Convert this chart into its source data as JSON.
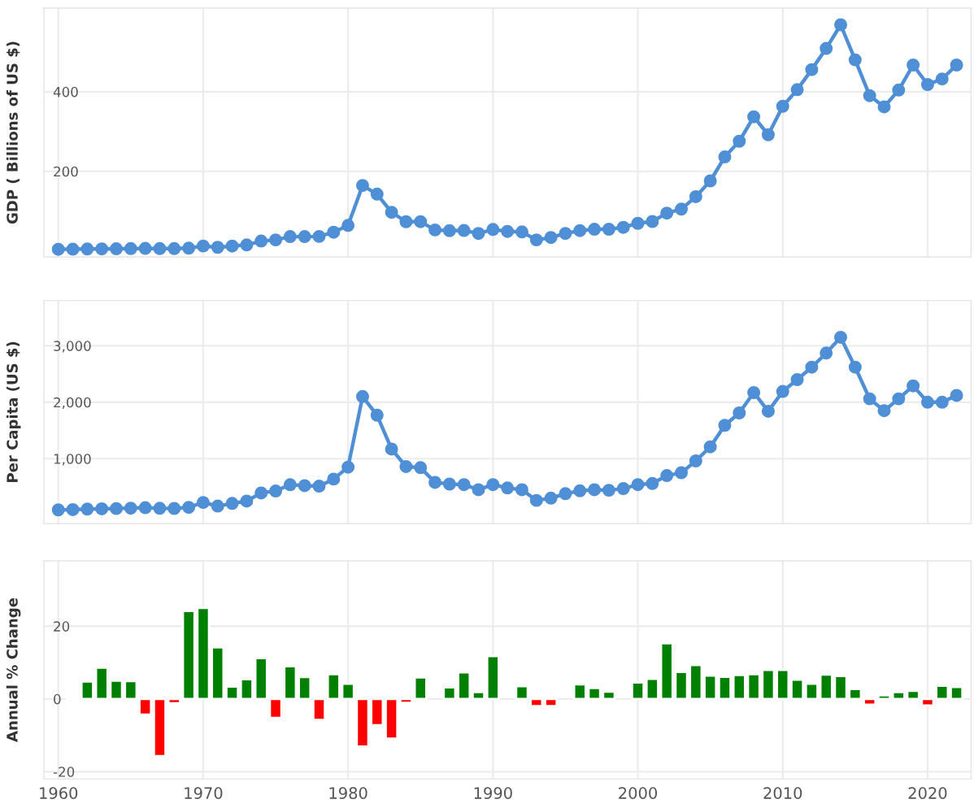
{
  "chart_data": [
    {
      "type": "line",
      "ylabel": "GDP ( Billions of US $)",
      "x": [
        1960,
        1961,
        1962,
        1963,
        1964,
        1965,
        1966,
        1967,
        1968,
        1969,
        1970,
        1971,
        1972,
        1973,
        1974,
        1975,
        1976,
        1977,
        1978,
        1979,
        1980,
        1981,
        1982,
        1983,
        1984,
        1985,
        1986,
        1987,
        1988,
        1989,
        1990,
        1991,
        1992,
        1993,
        1994,
        1995,
        1996,
        1997,
        1998,
        1999,
        2000,
        2001,
        2002,
        2003,
        2004,
        2005,
        2006,
        2007,
        2008,
        2009,
        2010,
        2011,
        2012,
        2013,
        2014,
        2015,
        2016,
        2017,
        2018,
        2019,
        2020,
        2021,
        2022
      ],
      "series": [
        {
          "color": "#4f8fd6",
          "values": [
            4.2,
            4.5,
            4.9,
            5.2,
            5.5,
            5.9,
            6.4,
            6.0,
            6.0,
            7.0,
            12.5,
            9.2,
            12.3,
            15.2,
            24.8,
            27.8,
            36.0,
            36.0,
            36.5,
            47.0,
            64.2,
            164.5,
            142.8,
            97.1,
            73.5,
            73.7,
            52.8,
            50.9,
            51.4,
            44.0,
            54.0,
            49.1,
            47.8,
            27.8,
            33.8,
            44.1,
            51.1,
            54.5,
            54.6,
            59.4,
            69.4,
            74.0,
            95.1,
            104.9,
            136.4,
            176.1,
            236.1,
            275.6,
            337.0,
            291.9,
            363.4,
            405.0,
            455.5,
            508.7,
            568.0,
            480.0,
            390.0,
            362.0,
            404.0,
            467.0,
            418.0,
            432.0,
            467.0
          ]
        }
      ],
      "xlim": [
        1959,
        2023
      ],
      "xticks": [
        1960,
        1970,
        1980,
        1990,
        2000,
        2010,
        2020
      ],
      "ylim": [
        -15,
        610
      ],
      "yticks": [
        200,
        400
      ],
      "tick_labels": "y",
      "grid": true,
      "marker": "circle",
      "line_style": "solid"
    },
    {
      "type": "line",
      "ylabel": "Per Capita (US $)",
      "x": [
        1960,
        1961,
        1962,
        1963,
        1964,
        1965,
        1966,
        1967,
        1968,
        1969,
        1970,
        1971,
        1972,
        1973,
        1974,
        1975,
        1976,
        1977,
        1978,
        1979,
        1980,
        1981,
        1982,
        1983,
        1984,
        1985,
        1986,
        1987,
        1988,
        1989,
        1990,
        1991,
        1992,
        1993,
        1994,
        1995,
        1996,
        1997,
        1998,
        1999,
        2000,
        2001,
        2002,
        2003,
        2004,
        2005,
        2006,
        2007,
        2008,
        2009,
        2010,
        2011,
        2012,
        2013,
        2014,
        2015,
        2016,
        2017,
        2018,
        2019,
        2020,
        2021,
        2022
      ],
      "series": [
        {
          "color": "#4f8fd6",
          "values": [
            93,
            97,
            106,
            112,
            116,
            123,
            131,
            120,
            118,
            137,
            224,
            160,
            207,
            248,
            393,
            427,
            538,
            522,
            513,
            638,
            850,
            2100,
            1770,
            1170,
            860,
            840,
            580,
            550,
            540,
            450,
            540,
            480,
            450,
            260,
            300,
            380,
            430,
            450,
            440,
            470,
            540,
            560,
            700,
            750,
            960,
            1210,
            1590,
            1810,
            2170,
            1840,
            2190,
            2400,
            2620,
            2870,
            3150,
            2620,
            2060,
            1850,
            2060,
            2290,
            2000,
            2000,
            2120
          ]
        }
      ],
      "xlim": [
        1959,
        2023
      ],
      "xticks": [
        1960,
        1970,
        1980,
        1990,
        2000,
        2010,
        2020
      ],
      "ylim": [
        -150,
        3800
      ],
      "yticks": [
        {
          "value": 1000,
          "label": "1,000"
        },
        {
          "value": 2000,
          "label": "2,000"
        },
        {
          "value": 3000,
          "label": "3,000"
        }
      ],
      "tick_labels": "y",
      "grid": true,
      "marker": "circle",
      "line_style": "solid"
    },
    {
      "type": "bar",
      "ylabel": "Annual % Change",
      "x": [
        1961,
        1962,
        1963,
        1964,
        1965,
        1966,
        1967,
        1968,
        1969,
        1970,
        1971,
        1972,
        1973,
        1974,
        1975,
        1976,
        1977,
        1978,
        1979,
        1980,
        1981,
        1982,
        1983,
        1984,
        1985,
        1986,
        1987,
        1988,
        1989,
        1990,
        1991,
        1992,
        1993,
        1994,
        1995,
        1996,
        1997,
        1998,
        1999,
        2000,
        2001,
        2002,
        2003,
        2004,
        2005,
        2006,
        2007,
        2008,
        2009,
        2010,
        2011,
        2012,
        2013,
        2014,
        2015,
        2016,
        2017,
        2018,
        2019,
        2020,
        2021,
        2022
      ],
      "series": [
        {
          "values": [
            0.2,
            4.8,
            8.6,
            5.0,
            4.9,
            -4.3,
            -15.7,
            -1.2,
            24.2,
            25.0,
            14.2,
            3.4,
            5.4,
            11.2,
            -5.2,
            9.0,
            6.0,
            -5.8,
            6.8,
            4.2,
            -13.1,
            -7.2,
            -10.9,
            -1.1,
            5.9,
            null,
            3.2,
            7.3,
            1.9,
            11.8,
            null,
            3.5,
            -2.0,
            -2.0,
            null,
            4.0,
            3.0,
            2.0,
            null,
            4.5,
            5.5,
            15.3,
            7.4,
            9.3,
            6.4,
            6.1,
            6.6,
            6.8,
            8.0,
            8.0,
            5.3,
            4.2,
            6.7,
            6.3,
            2.7,
            -1.6,
            1.0,
            1.9,
            2.2,
            -1.8,
            3.6,
            3.3
          ],
          "colors": [
            "#008000",
            "#008000",
            "#008000",
            "#008000",
            "#008000",
            "#ff0000",
            "#ff0000",
            "#ff0000",
            "#008000",
            "#008000",
            "#008000",
            "#008000",
            "#008000",
            "#008000",
            "#ff0000",
            "#008000",
            "#008000",
            "#ff0000",
            "#008000",
            "#008000",
            "#ff0000",
            "#ff0000",
            "#ff0000",
            "#ff0000",
            "#008000",
            "#008000",
            "#008000",
            "#008000",
            "#008000",
            "#008000",
            "#ff0000",
            "#008000",
            "#ff0000",
            "#ff0000",
            "#008000",
            "#008000",
            "#008000",
            "#008000",
            "#008000",
            "#008000",
            "#008000",
            "#008000",
            "#008000",
            "#008000",
            "#008000",
            "#008000",
            "#008000",
            "#008000",
            "#008000",
            "#008000",
            "#008000",
            "#008000",
            "#008000",
            "#008000",
            "#008000",
            "#ff0000",
            "#008000",
            "#008000",
            "#008000",
            "#ff0000",
            "#008000",
            "#008000"
          ]
        }
      ],
      "xlim": [
        1959,
        2023
      ],
      "xticks": [
        1960,
        1970,
        1980,
        1990,
        2000,
        2010,
        2020
      ],
      "ylim": [
        -22,
        38
      ],
      "yticks": [
        -20,
        0,
        20
      ],
      "grid": true
    }
  ]
}
